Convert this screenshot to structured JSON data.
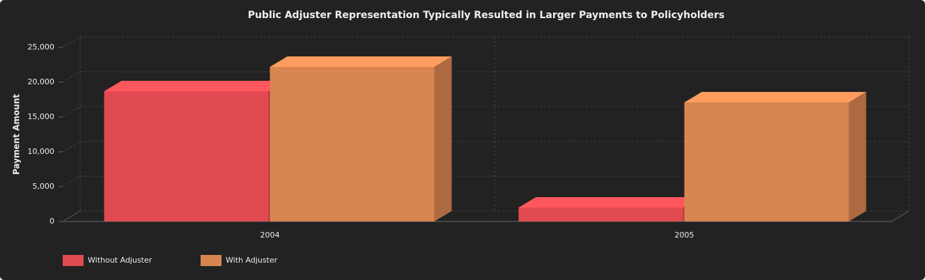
{
  "chart_data": {
    "type": "bar3d",
    "title": "Public Adjuster Representation Typically Resulted in Larger Payments to Policyholders",
    "y_label": "Payment Amount",
    "categories": [
      "2004",
      "2005"
    ],
    "series": [
      {
        "name": "Without Adjuster",
        "color": "#e04a50",
        "values": [
          18700,
          2000
        ]
      },
      {
        "name": "With Adjuster",
        "color": "#d88550",
        "values": [
          22200,
          17100
        ]
      }
    ],
    "ylim": [
      0,
      25000
    ],
    "yticks": [
      0,
      {
        "value": 5000,
        "label": "5,000"
      },
      {
        "value": 10000,
        "label": "10,000"
      },
      {
        "value": 15000,
        "label": "15,000"
      },
      {
        "value": 20000,
        "label": "20,000"
      },
      {
        "value": 25000,
        "label": "25,000"
      }
    ],
    "grid": true
  }
}
